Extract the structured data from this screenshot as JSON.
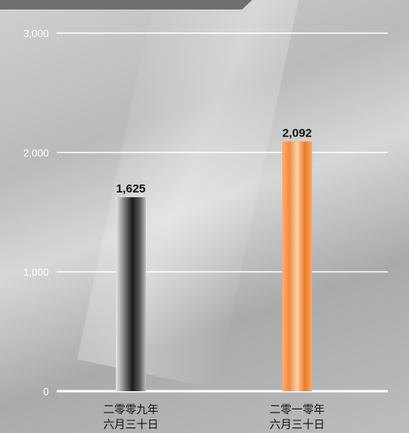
{
  "chart_data": {
    "type": "bar",
    "categories": [
      [
        "二零零九年",
        "六月三十日"
      ],
      [
        "二零一零年",
        "六月三十日"
      ]
    ],
    "values": [
      1625,
      2092
    ],
    "value_labels": [
      "1,625",
      "2,092"
    ],
    "y_ticks": [
      0,
      1000,
      2000,
      3000
    ],
    "y_tick_labels": [
      "0",
      "1,000",
      "2,000",
      "3,000"
    ],
    "ylim": [
      0,
      3000
    ],
    "grid": true,
    "bar_colors": [
      "#4a4a4a",
      "#f08a3c"
    ],
    "title": "",
    "xlabel": "",
    "ylabel": ""
  }
}
